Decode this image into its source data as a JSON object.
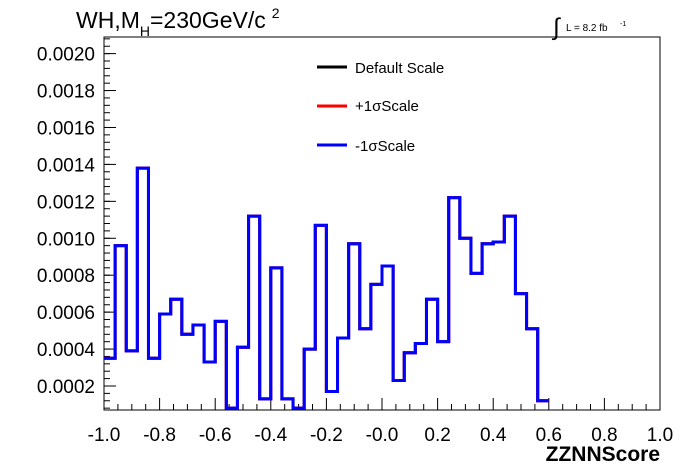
{
  "chart_data": {
    "type": "histogram",
    "title": "WH,M",
    "title_sub": "H",
    "title_rest": "=230GeV/c",
    "title_sup": "2",
    "lumi_label": "L = 8.2 fb",
    "lumi_sup": "-1",
    "integral_symbol": "∫",
    "xlabel": "ZZNNScore",
    "ylabel": "",
    "xlim": [
      -1.0,
      1.0
    ],
    "ylim": [
      7e-05,
      0.00209
    ],
    "x_ticks": [
      "-1.0",
      "-0.8",
      "-0.6",
      "-0.4",
      "-0.2",
      "-0.0",
      "0.2",
      "0.4",
      "0.6",
      "0.8",
      "1.0"
    ],
    "x_tick_values": [
      -1.0,
      -0.8,
      -0.6,
      -0.4,
      -0.2,
      0.0,
      0.2,
      0.4,
      0.6,
      0.8,
      1.0
    ],
    "y_ticks": [
      "0.0002",
      "0.0004",
      "0.0006",
      "0.0008",
      "0.0010",
      "0.0012",
      "0.0014",
      "0.0016",
      "0.0018",
      "0.0020"
    ],
    "y_tick_values": [
      0.0002,
      0.0004,
      0.0006,
      0.0008,
      0.001,
      0.0012,
      0.0014,
      0.0016,
      0.0018,
      0.002
    ],
    "bin_edges_start": -1.0,
    "bin_width": 0.04,
    "legend_position": "top-center",
    "series": [
      {
        "name": "Default Scale",
        "color": "#000000"
      },
      {
        "name": "+1σScale",
        "color": "#ff0000"
      },
      {
        "name": "-1σScale",
        "color": "#0000ff"
      }
    ],
    "values": [
      0.00035,
      0.00096,
      0.00039,
      0.00138,
      0.00035,
      0.00059,
      0.00067,
      0.00048,
      0.00053,
      0.00033,
      0.00055,
      8e-05,
      0.00041,
      0.00112,
      0.00013,
      0.00084,
      0.00013,
      8e-05,
      0.0004,
      0.00107,
      0.00017,
      0.00046,
      0.00097,
      0.00051,
      0.00075,
      0.00085,
      0.00023,
      0.00038,
      0.00043,
      0.00067,
      0.00044,
      0.00122,
      0.001,
      0.00081,
      0.00097,
      0.00098,
      0.00112,
      0.0007,
      0.00051,
      0.00012
    ]
  }
}
